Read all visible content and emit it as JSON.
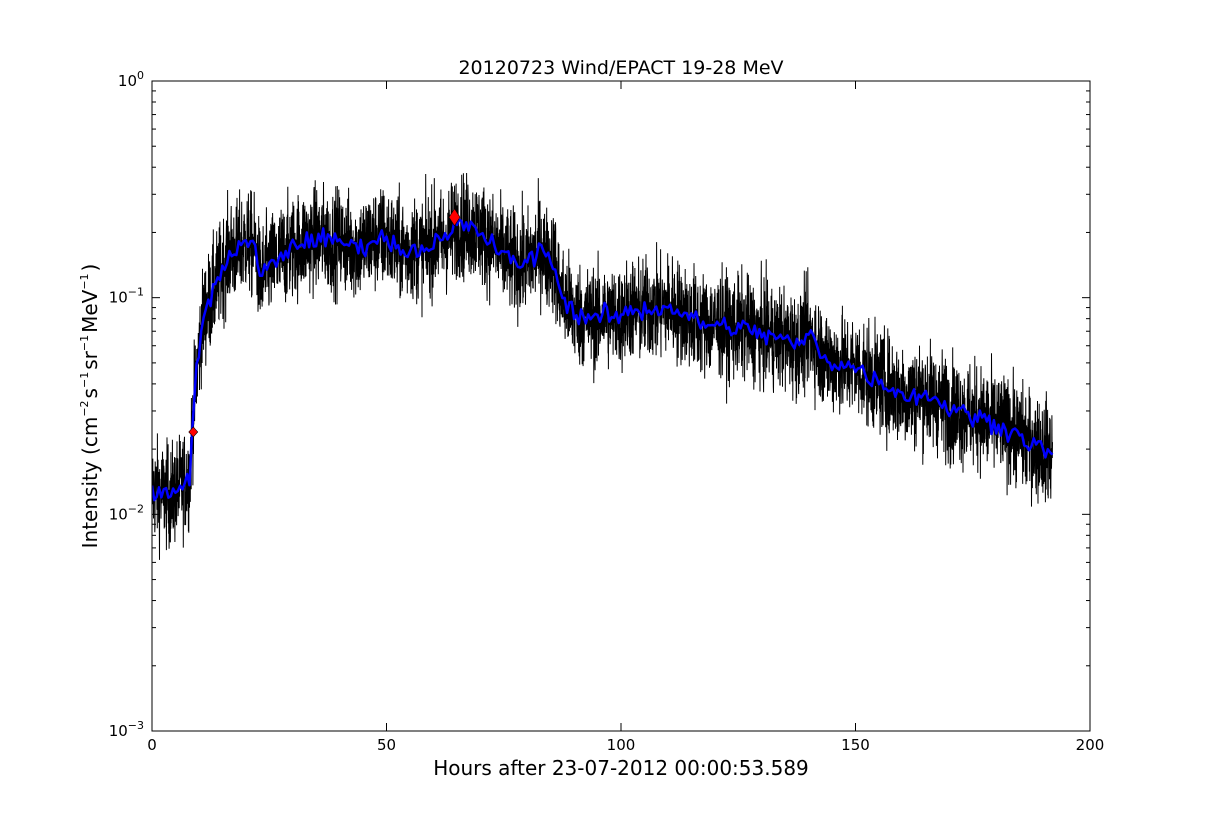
{
  "chart_data": {
    "type": "line",
    "title": "20120723 Wind/EPACT 19-28 MeV",
    "xlabel": "Hours after 23-07-2012 00:00:53.589",
    "ylabel": {
      "prefix": "Intensity (cm",
      "sup1": "−2",
      "mid1": "s",
      "sup2": "−1",
      "mid2": "sr",
      "sup3": "−1",
      "mid3": "MeV",
      "sup4": "−1",
      "suffix": ")"
    },
    "x_scale": "linear",
    "y_scale": "log",
    "xlim": [
      0,
      200
    ],
    "ylim": [
      0.001,
      1
    ],
    "x_ticks": [
      {
        "value": 0,
        "label": "0"
      },
      {
        "value": 50,
        "label": "50"
      },
      {
        "value": 100,
        "label": "100"
      },
      {
        "value": 150,
        "label": "150"
      },
      {
        "value": 200,
        "label": "200"
      }
    ],
    "y_ticks": [
      {
        "value": 0.001,
        "base": "10",
        "exp": "−3"
      },
      {
        "value": 0.01,
        "base": "10",
        "exp": "−2"
      },
      {
        "value": 0.1,
        "base": "10",
        "exp": "−1"
      },
      {
        "value": 1,
        "base": "10",
        "exp": "0"
      }
    ],
    "grid": false,
    "legend": "none",
    "series": [
      {
        "role": "raw",
        "color": "#000000",
        "noise": 0.3,
        "x": [
          0,
          4,
          8,
          8.5,
          9.5,
          10.5,
          11,
          12,
          13,
          14,
          15,
          16,
          17,
          18,
          19,
          20,
          21,
          22,
          23,
          24,
          25,
          26,
          27,
          28,
          30,
          32,
          34,
          36,
          38,
          40,
          42,
          44,
          46,
          48,
          50,
          52,
          54,
          56,
          58,
          60,
          62,
          64,
          65,
          66,
          68,
          70,
          72,
          74,
          76,
          78,
          80,
          82,
          83,
          84,
          85,
          86,
          87,
          88,
          89,
          90,
          92,
          94,
          95,
          96,
          98,
          100,
          102,
          104,
          106,
          108,
          110,
          112,
          114,
          116,
          118,
          120,
          122,
          124,
          126,
          128,
          130,
          132,
          134,
          136,
          138,
          140,
          141,
          142,
          143,
          144,
          145,
          146,
          148,
          150,
          152,
          154,
          156,
          158,
          160,
          162,
          164,
          166,
          168,
          170,
          172,
          174,
          176,
          178,
          180,
          182,
          184,
          186,
          188,
          190,
          192
        ],
        "y": [
          0.013,
          0.012,
          0.015,
          0.024,
          0.045,
          0.07,
          0.082,
          0.093,
          0.105,
          0.12,
          0.135,
          0.155,
          0.165,
          0.16,
          0.175,
          0.18,
          0.175,
          0.17,
          0.125,
          0.13,
          0.14,
          0.145,
          0.15,
          0.16,
          0.17,
          0.18,
          0.185,
          0.19,
          0.18,
          0.185,
          0.175,
          0.17,
          0.18,
          0.185,
          0.19,
          0.17,
          0.165,
          0.17,
          0.165,
          0.185,
          0.18,
          0.2,
          0.22,
          0.215,
          0.21,
          0.2,
          0.18,
          0.165,
          0.15,
          0.145,
          0.145,
          0.16,
          0.175,
          0.15,
          0.155,
          0.14,
          0.105,
          0.098,
          0.092,
          0.085,
          0.082,
          0.08,
          0.078,
          0.085,
          0.082,
          0.08,
          0.09,
          0.085,
          0.09,
          0.088,
          0.092,
          0.087,
          0.082,
          0.078,
          0.075,
          0.075,
          0.074,
          0.072,
          0.073,
          0.07,
          0.068,
          0.066,
          0.065,
          0.062,
          0.06,
          0.068,
          0.065,
          0.058,
          0.055,
          0.052,
          0.05,
          0.05,
          0.048,
          0.048,
          0.045,
          0.042,
          0.04,
          0.038,
          0.036,
          0.035,
          0.036,
          0.035,
          0.033,
          0.031,
          0.03,
          0.029,
          0.028,
          0.027,
          0.026,
          0.025,
          0.024,
          0.022,
          0.021,
          0.02,
          0.019
        ]
      },
      {
        "role": "smoothed",
        "color": "#0000ff",
        "x": [
          0,
          4,
          8,
          8.5,
          9.5,
          10.5,
          11,
          12,
          13,
          14,
          15,
          16,
          17,
          18,
          19,
          20,
          21,
          22,
          23,
          24,
          25,
          26,
          27,
          28,
          30,
          32,
          34,
          36,
          38,
          40,
          42,
          44,
          46,
          48,
          50,
          52,
          54,
          56,
          58,
          60,
          62,
          64,
          65,
          66,
          68,
          70,
          72,
          74,
          76,
          78,
          80,
          82,
          83,
          84,
          85,
          86,
          87,
          88,
          89,
          90,
          92,
          94,
          95,
          96,
          98,
          100,
          102,
          104,
          106,
          108,
          110,
          112,
          114,
          116,
          118,
          120,
          122,
          124,
          126,
          128,
          130,
          132,
          134,
          136,
          138,
          140,
          141,
          142,
          143,
          144,
          145,
          146,
          148,
          150,
          152,
          154,
          156,
          158,
          160,
          162,
          164,
          166,
          168,
          170,
          172,
          174,
          176,
          178,
          180,
          182,
          184,
          186,
          188,
          190,
          192
        ],
        "y": [
          0.013,
          0.012,
          0.015,
          0.024,
          0.045,
          0.07,
          0.082,
          0.093,
          0.105,
          0.12,
          0.135,
          0.155,
          0.165,
          0.16,
          0.175,
          0.18,
          0.175,
          0.17,
          0.125,
          0.13,
          0.14,
          0.145,
          0.15,
          0.16,
          0.17,
          0.18,
          0.185,
          0.19,
          0.18,
          0.185,
          0.175,
          0.17,
          0.18,
          0.185,
          0.19,
          0.17,
          0.165,
          0.17,
          0.165,
          0.185,
          0.18,
          0.2,
          0.22,
          0.215,
          0.21,
          0.2,
          0.18,
          0.165,
          0.15,
          0.145,
          0.145,
          0.16,
          0.175,
          0.15,
          0.155,
          0.14,
          0.105,
          0.098,
          0.092,
          0.085,
          0.082,
          0.08,
          0.078,
          0.085,
          0.082,
          0.08,
          0.09,
          0.085,
          0.09,
          0.088,
          0.092,
          0.087,
          0.082,
          0.078,
          0.075,
          0.075,
          0.074,
          0.072,
          0.073,
          0.07,
          0.068,
          0.066,
          0.065,
          0.062,
          0.06,
          0.068,
          0.065,
          0.058,
          0.055,
          0.052,
          0.05,
          0.05,
          0.048,
          0.048,
          0.045,
          0.042,
          0.04,
          0.038,
          0.036,
          0.035,
          0.036,
          0.035,
          0.033,
          0.031,
          0.03,
          0.029,
          0.028,
          0.027,
          0.026,
          0.025,
          0.024,
          0.022,
          0.021,
          0.02,
          0.019
        ]
      }
    ],
    "markers": [
      {
        "role": "onset",
        "x": 8.8,
        "y": 0.024,
        "shape": "diamond",
        "color": "#ff0000",
        "size": "small"
      },
      {
        "role": "peak",
        "x": 64.5,
        "y": 0.235,
        "shape": "diamond",
        "color": "#ff0000",
        "size": "large"
      }
    ]
  }
}
